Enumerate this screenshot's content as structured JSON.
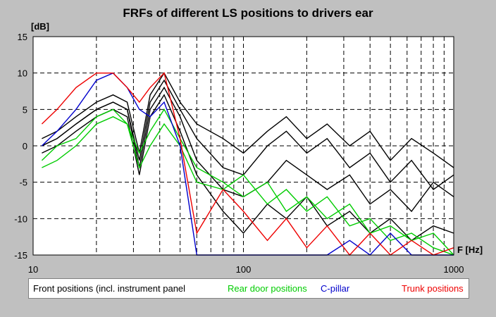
{
  "chart_data": {
    "type": "line",
    "title": "FRFs of different LS positions to drivers ear",
    "ylabel": "[dB]",
    "xlabel": "F [Hz]",
    "x_scale": "log",
    "xlim": [
      10,
      1000
    ],
    "ylim": [
      -15,
      15
    ],
    "x_ticks": [
      "10",
      "100",
      "1000"
    ],
    "y_ticks": [
      "15",
      "10",
      "5",
      "0",
      "-5",
      "-10",
      "-15"
    ],
    "grid": true,
    "legend": [
      {
        "label": "Front positions (incl. instrument panel",
        "color": "#000000"
      },
      {
        "label": "Rear door positions",
        "color": "#00cc00"
      },
      {
        "label": "C-pillar",
        "color": "#0000cc"
      },
      {
        "label": "Trunk positions",
        "color": "#ee0000"
      }
    ],
    "series": [
      {
        "group": "front",
        "color": "#000000",
        "x": [
          11,
          13,
          16,
          20,
          24,
          28,
          32,
          36,
          42,
          50,
          60,
          80,
          100,
          130,
          160,
          200,
          250,
          320,
          400,
          500,
          630,
          800,
          1000
        ],
        "y": [
          0,
          1,
          3,
          5,
          6,
          5,
          -3,
          5,
          8,
          4,
          -2,
          -6,
          -7,
          -5,
          -2,
          -4,
          -6,
          -4,
          -8,
          -6,
          -9,
          -5,
          -7
        ]
      },
      {
        "group": "front",
        "color": "#000000",
        "x": [
          11,
          13,
          16,
          20,
          24,
          28,
          32,
          36,
          42,
          50,
          60,
          80,
          100,
          130,
          160,
          200,
          250,
          320,
          400,
          500,
          630,
          800,
          1000
        ],
        "y": [
          1,
          2,
          4,
          6,
          7,
          6,
          -1,
          7,
          10,
          6,
          3,
          1,
          -1,
          2,
          4,
          1,
          3,
          0,
          2,
          -2,
          1,
          -1,
          -3
        ]
      },
      {
        "group": "front",
        "color": "#000000",
        "x": [
          11,
          13,
          16,
          20,
          24,
          28,
          32,
          36,
          42,
          50,
          60,
          80,
          100,
          130,
          160,
          200,
          250,
          320,
          400,
          500,
          630,
          800,
          1000
        ],
        "y": [
          -1,
          0,
          2,
          4,
          5,
          4,
          -4,
          4,
          7,
          2,
          -4,
          -9,
          -12,
          -8,
          -10,
          -7,
          -11,
          -9,
          -12,
          -10,
          -13,
          -11,
          -12
        ]
      },
      {
        "group": "front",
        "color": "#000000",
        "x": [
          11,
          13,
          16,
          20,
          24,
          28,
          32,
          36,
          42,
          50,
          60,
          80,
          100,
          130,
          160,
          200,
          250,
          320,
          400,
          500,
          630,
          800,
          1000
        ],
        "y": [
          0,
          1,
          3,
          5,
          6,
          5,
          -2,
          6,
          9,
          5,
          1,
          -3,
          -4,
          0,
          2,
          -1,
          1,
          -3,
          -1,
          -5,
          -2,
          -6,
          -4
        ]
      },
      {
        "group": "rear_door",
        "color": "#00cc00",
        "x": [
          11,
          13,
          16,
          20,
          24,
          28,
          32,
          36,
          42,
          50,
          60,
          80,
          100,
          130,
          160,
          200,
          250,
          320,
          400,
          500,
          630,
          800,
          1000
        ],
        "y": [
          -3,
          -2,
          0,
          3,
          4,
          3,
          -3,
          0,
          3,
          0,
          -5,
          -6,
          -4,
          -8,
          -6,
          -9,
          -7,
          -11,
          -10,
          -13,
          -12,
          -14,
          -15
        ]
      },
      {
        "group": "rear_door",
        "color": "#00cc00",
        "x": [
          11,
          13,
          16,
          20,
          24,
          28,
          32,
          36,
          42,
          50,
          60,
          80,
          100,
          130,
          160,
          200,
          250,
          320,
          400,
          500,
          630,
          800,
          1000
        ],
        "y": [
          -2,
          0,
          1,
          4,
          5,
          3,
          -1,
          2,
          5,
          1,
          -3,
          -5,
          -7,
          -5,
          -9,
          -7,
          -10,
          -8,
          -12,
          -11,
          -13,
          -12,
          -15
        ]
      },
      {
        "group": "c_pillar",
        "color": "#0000cc",
        "x": [
          11,
          13,
          16,
          20,
          24,
          28,
          32,
          36,
          42,
          50,
          60,
          80,
          100,
          130,
          160,
          200,
          250,
          320,
          400,
          500,
          630,
          800,
          1000
        ],
        "y": [
          0,
          2,
          5,
          9,
          10,
          8,
          5,
          4,
          6,
          0,
          -15,
          -15,
          -15,
          -15,
          -15,
          -15,
          -15,
          -13,
          -15,
          -12,
          -15,
          -15,
          -15
        ]
      },
      {
        "group": "trunk",
        "color": "#ee0000",
        "x": [
          11,
          13,
          16,
          20,
          24,
          28,
          32,
          36,
          42,
          50,
          60,
          80,
          100,
          130,
          160,
          200,
          250,
          320,
          400,
          500,
          630,
          800,
          1000
        ],
        "y": [
          3,
          5,
          8,
          10,
          10,
          8,
          6,
          8,
          10,
          1,
          -12,
          -6,
          -9,
          -13,
          -10,
          -14,
          -11,
          -15,
          -12,
          -15,
          -13,
          -15,
          -14
        ]
      }
    ]
  }
}
